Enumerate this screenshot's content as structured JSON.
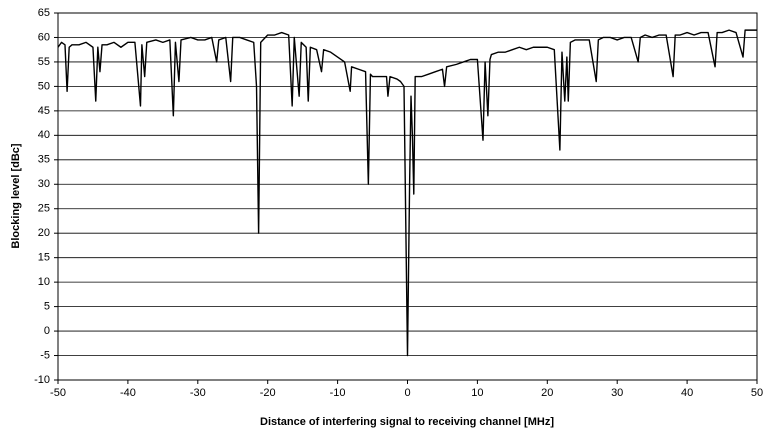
{
  "chart_data": {
    "type": "line",
    "ylabel": "Blocking level [dBc]",
    "xlabel": "Distance of interfering signal to receiving channel [MHz]",
    "xlim": [
      -50,
      50
    ],
    "xticks": [
      -50,
      -40,
      -30,
      -20,
      -10,
      0,
      10,
      20,
      30,
      40,
      50
    ],
    "ylim": [
      -10,
      65
    ],
    "yticks": [
      -10,
      -5,
      0,
      5,
      10,
      15,
      20,
      25,
      30,
      35,
      40,
      45,
      50,
      55,
      60,
      65
    ],
    "grid": true,
    "series": [
      {
        "color": "#000000",
        "x": [
          -50,
          -49.5,
          -49,
          -48.7,
          -48.4,
          -48,
          -47,
          -46,
          -45,
          -44.6,
          -44.3,
          -44,
          -43.7,
          -43,
          -42,
          -41,
          -40,
          -39,
          -38.2,
          -38,
          -37.6,
          -37.3,
          -36,
          -35,
          -34,
          -33.5,
          -33.2,
          -32.7,
          -32.4,
          -31,
          -30,
          -29,
          -28,
          -27.3,
          -27,
          -26,
          -25.3,
          -25,
          -24,
          -23,
          -22,
          -21.6,
          -21.3,
          -21,
          -20,
          -19,
          -18,
          -17,
          -16.5,
          -16.2,
          -15.5,
          -15.2,
          -14.5,
          -14.2,
          -13.9,
          -13,
          -12.3,
          -12,
          -11,
          -10,
          -9,
          -8.2,
          -8,
          -7,
          -6,
          -5.6,
          -5.3,
          -5,
          -4,
          -3,
          -2.8,
          -2.5,
          -1.5,
          -1,
          -0.5,
          0,
          0.3,
          0.5,
          0.7,
          0.9,
          1.1,
          2,
          3,
          4,
          5,
          5.3,
          5.6,
          7,
          8,
          9,
          10,
          10.8,
          11.1,
          11.5,
          11.8,
          12,
          13,
          14,
          15,
          16,
          17,
          18,
          19,
          20,
          21,
          21.8,
          22.1,
          22.5,
          22.8,
          23,
          23.3,
          24,
          25,
          26,
          27,
          27.3,
          28,
          29,
          30,
          31,
          32,
          33,
          33.3,
          34,
          35,
          36,
          37,
          38,
          38.3,
          39,
          40,
          41,
          42,
          43,
          44,
          44.3,
          45,
          46,
          47,
          48,
          48.3,
          49,
          50
        ],
        "values": [
          58,
          59,
          58.5,
          49,
          58,
          58.5,
          58.5,
          59,
          58,
          47,
          58,
          53,
          58.5,
          58.5,
          59,
          58,
          59,
          59,
          46,
          58.5,
          52,
          59,
          59.5,
          59,
          59.5,
          44,
          59,
          51,
          59.5,
          60,
          59.5,
          59.5,
          60,
          55,
          59.5,
          60,
          51,
          60,
          60,
          59.5,
          59,
          50,
          20,
          59,
          60.5,
          60.5,
          61,
          60.5,
          46,
          60,
          48,
          59,
          58,
          47,
          58,
          57.5,
          53,
          57.5,
          57,
          56,
          55,
          49,
          54,
          53.5,
          53,
          30,
          52.5,
          52,
          52,
          52,
          48,
          52,
          51.5,
          51,
          50,
          -5,
          30,
          48,
          40,
          28,
          52,
          52,
          52.5,
          53,
          53.5,
          50,
          54,
          54.5,
          55,
          55.5,
          55.5,
          39,
          55,
          44,
          55.5,
          56.5,
          57,
          57,
          57.5,
          58,
          57.5,
          58,
          58,
          58,
          57.5,
          37,
          57,
          47,
          56,
          47,
          59,
          59.5,
          59.5,
          59.5,
          51,
          59.5,
          60,
          60,
          59.5,
          60,
          60,
          55,
          60,
          60.5,
          60,
          60.5,
          60.5,
          52,
          60.5,
          60.5,
          61,
          60.5,
          61,
          61,
          54,
          61,
          61,
          61.5,
          61,
          56,
          61.5,
          61.5,
          61.5
        ]
      }
    ]
  }
}
